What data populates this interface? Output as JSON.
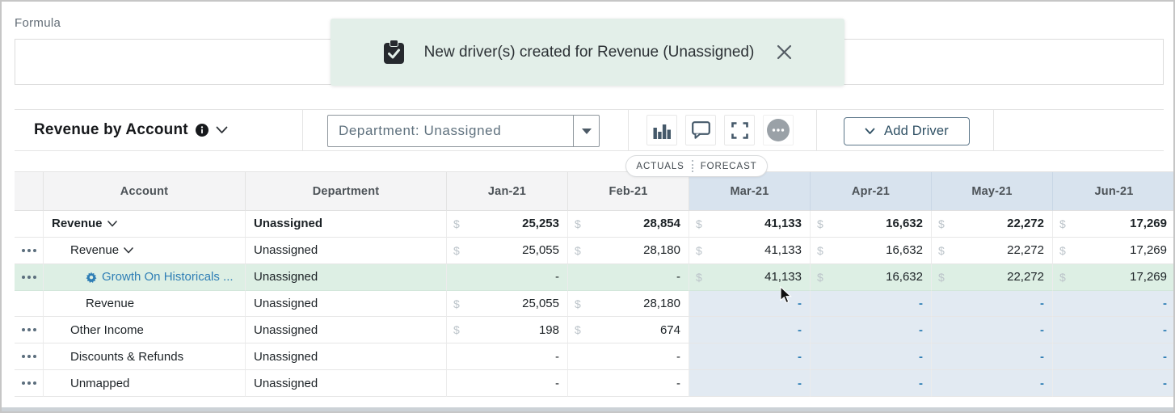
{
  "formula": {
    "label": "Formula",
    "value": ""
  },
  "toast": {
    "message": "New driver(s) created for Revenue (Unassigned)",
    "icon": "clipboard-check-icon",
    "close_icon": "close-icon",
    "background": "#e3efe9"
  },
  "toolbar": {
    "title": "Revenue by Account",
    "title_icons": [
      "info-icon",
      "chevron-down-icon"
    ],
    "filter": {
      "value": "Department: Unassigned"
    },
    "icons": [
      "bar-chart-icon",
      "comment-icon",
      "fullscreen-icon",
      "more-options-icon"
    ],
    "add_driver_label": "Add Driver"
  },
  "pill": {
    "actuals": "ACTUALS",
    "forecast": "FORECAST"
  },
  "table": {
    "currency": "$",
    "headers": [
      {
        "label": "",
        "zone": "gray"
      },
      {
        "label": "Account",
        "zone": "gray"
      },
      {
        "label": "Department",
        "zone": "gray"
      },
      {
        "label": "Jan-21",
        "zone": "gray"
      },
      {
        "label": "Feb-21",
        "zone": "gray"
      },
      {
        "label": "Mar-21",
        "zone": "blue"
      },
      {
        "label": "Apr-21",
        "zone": "blue"
      },
      {
        "label": "May-21",
        "zone": "blue"
      },
      {
        "label": "Jun-21",
        "zone": "blue"
      }
    ],
    "rows": [
      {
        "account": "Revenue",
        "level": 0,
        "bold": true,
        "chevron": true,
        "gear": false,
        "link": false,
        "menu": false,
        "department": "Unassigned",
        "bg": "white",
        "cells": [
          {
            "d": true,
            "v": "25,253"
          },
          {
            "d": true,
            "v": "28,854"
          },
          {
            "d": true,
            "v": "41,133"
          },
          {
            "d": true,
            "v": "16,632"
          },
          {
            "d": true,
            "v": "22,272"
          },
          {
            "d": true,
            "v": "17,269"
          }
        ]
      },
      {
        "account": "Revenue",
        "level": 1,
        "bold": false,
        "chevron": true,
        "gear": false,
        "link": false,
        "menu": true,
        "department": "Unassigned",
        "bg": "white",
        "cells": [
          {
            "d": true,
            "v": "25,055"
          },
          {
            "d": true,
            "v": "28,180"
          },
          {
            "d": true,
            "v": "41,133"
          },
          {
            "d": true,
            "v": "16,632"
          },
          {
            "d": true,
            "v": "22,272"
          },
          {
            "d": true,
            "v": "17,269"
          }
        ]
      },
      {
        "account": "Growth On Historicals ...",
        "level": 2,
        "bold": false,
        "chevron": false,
        "gear": true,
        "link": true,
        "menu": true,
        "department": "Unassigned",
        "bg": "green",
        "cells": [
          {
            "d": false,
            "v": "-"
          },
          {
            "d": false,
            "v": "-"
          },
          {
            "d": true,
            "v": "41,133"
          },
          {
            "d": true,
            "v": "16,632"
          },
          {
            "d": true,
            "v": "22,272"
          },
          {
            "d": true,
            "v": "17,269"
          }
        ]
      },
      {
        "account": "Revenue",
        "level": 2,
        "bold": false,
        "chevron": false,
        "gear": false,
        "link": false,
        "menu": false,
        "department": "Unassigned",
        "bg": "split",
        "cells": [
          {
            "d": true,
            "v": "25,055"
          },
          {
            "d": true,
            "v": "28,180"
          },
          {
            "d": false,
            "v": "-"
          },
          {
            "d": false,
            "v": "-"
          },
          {
            "d": false,
            "v": "-"
          },
          {
            "d": false,
            "v": "-"
          }
        ]
      },
      {
        "account": "Other Income",
        "level": 1,
        "bold": false,
        "chevron": false,
        "gear": false,
        "link": false,
        "menu": true,
        "department": "Unassigned",
        "bg": "split",
        "cells": [
          {
            "d": true,
            "v": "198"
          },
          {
            "d": true,
            "v": "674"
          },
          {
            "d": false,
            "v": "-"
          },
          {
            "d": false,
            "v": "-"
          },
          {
            "d": false,
            "v": "-"
          },
          {
            "d": false,
            "v": "-"
          }
        ]
      },
      {
        "account": "Discounts & Refunds",
        "level": 1,
        "bold": false,
        "chevron": false,
        "gear": false,
        "link": false,
        "menu": true,
        "department": "Unassigned",
        "bg": "split",
        "cells": [
          {
            "d": false,
            "v": "-"
          },
          {
            "d": false,
            "v": "-"
          },
          {
            "d": false,
            "v": "-"
          },
          {
            "d": false,
            "v": "-"
          },
          {
            "d": false,
            "v": "-"
          },
          {
            "d": false,
            "v": "-"
          }
        ]
      },
      {
        "account": "Unmapped",
        "level": 1,
        "bold": false,
        "chevron": false,
        "gear": false,
        "link": false,
        "menu": true,
        "department": "Unassigned",
        "bg": "split",
        "cells": [
          {
            "d": false,
            "v": "-"
          },
          {
            "d": false,
            "v": "-"
          },
          {
            "d": false,
            "v": "-"
          },
          {
            "d": false,
            "v": "-"
          },
          {
            "d": false,
            "v": "-"
          },
          {
            "d": false,
            "v": "-"
          }
        ]
      }
    ],
    "colors": {
      "forecast_header": "#d8e3ee",
      "forecast_cell": "#e2eaf2",
      "highlight_row": "#ddefe4",
      "link_blue": "#2e7eb5",
      "dollar_gray": "#bcc4ca"
    }
  }
}
